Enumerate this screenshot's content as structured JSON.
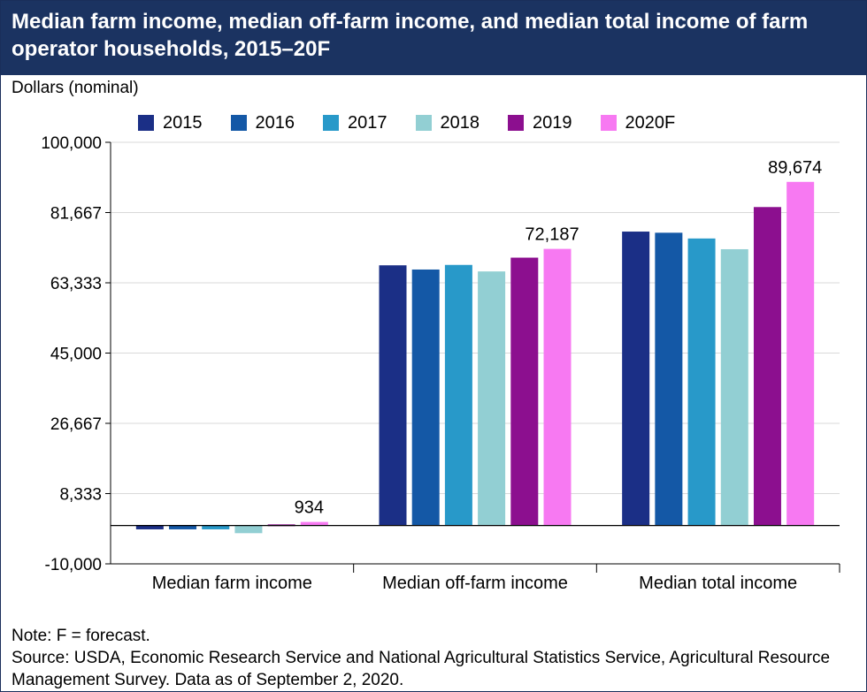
{
  "header": {
    "title": "Median farm income, median off-farm income, and median total income of farm operator households, 2015–20F"
  },
  "units_label": "Dollars (nominal)",
  "legend": [
    {
      "label": "2015",
      "color": "#1b2f86"
    },
    {
      "label": "2016",
      "color": "#1458a6"
    },
    {
      "label": "2017",
      "color": "#2899c9"
    },
    {
      "label": "2018",
      "color": "#92cfd3"
    },
    {
      "label": "2019",
      "color": "#8c0f8f"
    },
    {
      "label": "2020F",
      "color": "#f779f2"
    }
  ],
  "chart_data": {
    "type": "bar",
    "categories": [
      "Median farm income",
      "Median off-farm income",
      "Median total income"
    ],
    "series": [
      {
        "name": "2015",
        "color": "#1b2f86",
        "values": [
          -1000,
          67900,
          76700
        ]
      },
      {
        "name": "2016",
        "color": "#1458a6",
        "values": [
          -1000,
          66800,
          76400
        ]
      },
      {
        "name": "2017",
        "color": "#2899c9",
        "values": [
          -1000,
          68000,
          74900
        ]
      },
      {
        "name": "2018",
        "color": "#92cfd3",
        "values": [
          -2000,
          66300,
          72100
        ]
      },
      {
        "name": "2019",
        "color": "#8c0f8f",
        "values": [
          300,
          69900,
          83100
        ]
      },
      {
        "name": "2020F",
        "color": "#f779f2",
        "values": [
          934,
          72187,
          89674
        ]
      }
    ],
    "data_labels": [
      {
        "category_index": 0,
        "series_index": 5,
        "text": "934"
      },
      {
        "category_index": 1,
        "series_index": 5,
        "text": "72,187"
      },
      {
        "category_index": 2,
        "series_index": 5,
        "text": "89,674"
      }
    ],
    "yticks": [
      -10000,
      8333,
      26667,
      45000,
      63333,
      81667,
      100000
    ],
    "ytick_labels": [
      "-10,000",
      "8,333",
      "26,667",
      "45,000",
      "63,333",
      "81,667",
      "100,000"
    ],
    "ylim": [
      -10000,
      100000
    ],
    "grid": true,
    "legend_position": "top"
  },
  "footer": {
    "note": "Note: F = forecast.",
    "source": "Source: USDA, Economic Research Service and National Agricultural Statistics Service, Agricultural Resource Management Survey. Data as of September 2, 2020."
  }
}
